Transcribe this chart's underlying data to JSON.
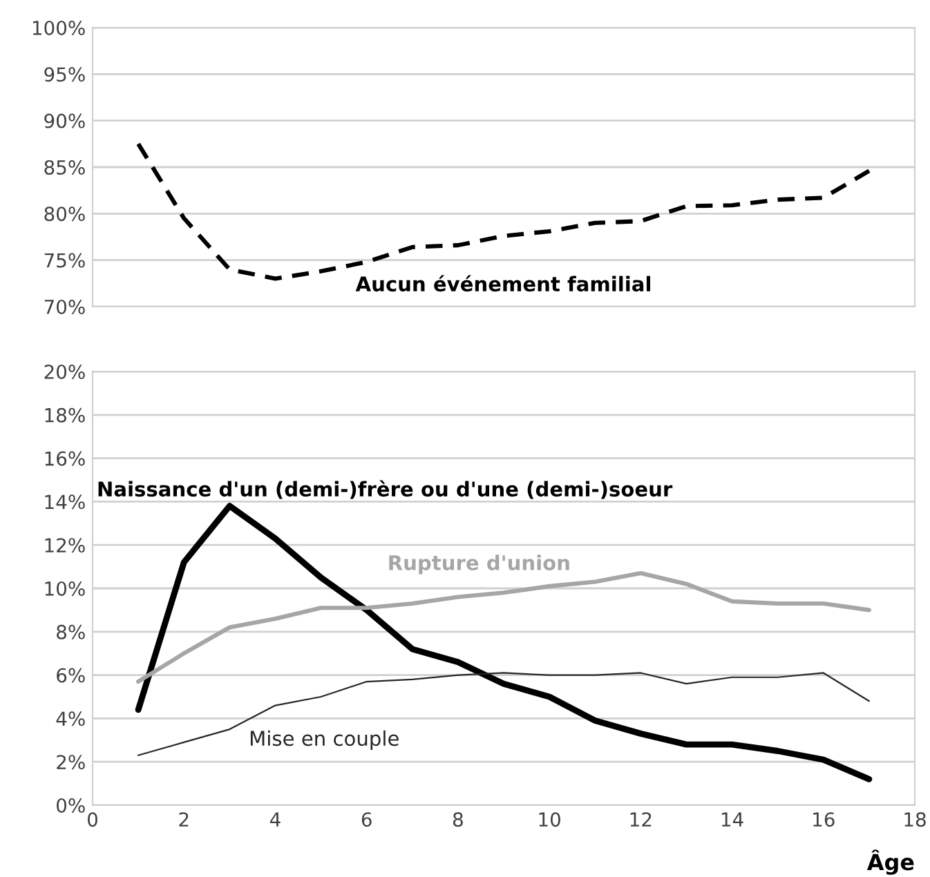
{
  "chart_data": [
    {
      "type": "line",
      "x": [
        1,
        2,
        3,
        4,
        5,
        6,
        7,
        8,
        9,
        10,
        11,
        12,
        13,
        14,
        15,
        16,
        17
      ],
      "xlim": [
        0,
        18
      ],
      "xticks": [
        0,
        2,
        4,
        6,
        8,
        10,
        12,
        14,
        16,
        18
      ],
      "ylim": [
        70,
        100
      ],
      "yticks": [
        {
          "value": 70,
          "label": "70%"
        },
        {
          "value": 75,
          "label": "75%"
        },
        {
          "value": 80,
          "label": "80%"
        },
        {
          "value": 85,
          "label": "85%"
        },
        {
          "value": 90,
          "label": "90%"
        },
        {
          "value": 95,
          "label": "95%"
        },
        {
          "value": 100,
          "label": "100%"
        }
      ],
      "grid": "y",
      "tick_labels": "y",
      "line_style": "dashed",
      "series": [
        {
          "name": "Aucun événement familial",
          "color": "#000000",
          "values": [
            87.5,
            79.5,
            74,
            73,
            73.8,
            74.8,
            76.4,
            76.6,
            77.6,
            78.1,
            79,
            79.2,
            80.8,
            80.9,
            81.5,
            81.7,
            84.6
          ]
        }
      ]
    },
    {
      "type": "line",
      "x": [
        1,
        2,
        3,
        4,
        5,
        6,
        7,
        8,
        9,
        10,
        11,
        12,
        13,
        14,
        15,
        16,
        17
      ],
      "xlim": [
        0,
        18
      ],
      "xticks": [
        0,
        2,
        4,
        6,
        8,
        10,
        12,
        14,
        16,
        18
      ],
      "ylim": [
        0,
        20
      ],
      "yticks": [
        {
          "value": 0,
          "label": "0%"
        },
        {
          "value": 2,
          "label": "2%"
        },
        {
          "value": 4,
          "label": "4%"
        },
        {
          "value": 6,
          "label": "6%"
        },
        {
          "value": 8,
          "label": "8%"
        },
        {
          "value": 10,
          "label": "10%"
        },
        {
          "value": 12,
          "label": "12%"
        },
        {
          "value": 14,
          "label": "14%"
        },
        {
          "value": 16,
          "label": "16%"
        },
        {
          "value": 18,
          "label": "18%"
        },
        {
          "value": 20,
          "label": "20%"
        }
      ],
      "grid": "y",
      "xlabel": "Âge",
      "line_style": "solid",
      "series": [
        {
          "name": "Naissance d'un (demi-)frère ou d'une (demi-)soeur",
          "color": "#000000",
          "values": [
            4.4,
            11.2,
            13.8,
            12.3,
            10.5,
            9.0,
            7.2,
            6.6,
            5.6,
            5.0,
            3.9,
            3.3,
            2.8,
            2.8,
            2.5,
            2.1,
            1.2
          ]
        },
        {
          "name": "Rupture d'union",
          "color": "#a6a6a6",
          "values": [
            5.7,
            7.0,
            8.2,
            8.6,
            9.1,
            9.1,
            9.3,
            9.6,
            9.8,
            10.1,
            10.3,
            10.7,
            10.2,
            9.4,
            9.3,
            9.3,
            9.0
          ]
        },
        {
          "name": "Mise en couple",
          "color": "#262626",
          "values": [
            2.3,
            2.9,
            3.5,
            4.6,
            5.0,
            5.7,
            5.8,
            6.0,
            6.1,
            6.0,
            6.0,
            6.1,
            5.6,
            5.9,
            5.9,
            6.1,
            4.8
          ]
        }
      ]
    }
  ]
}
